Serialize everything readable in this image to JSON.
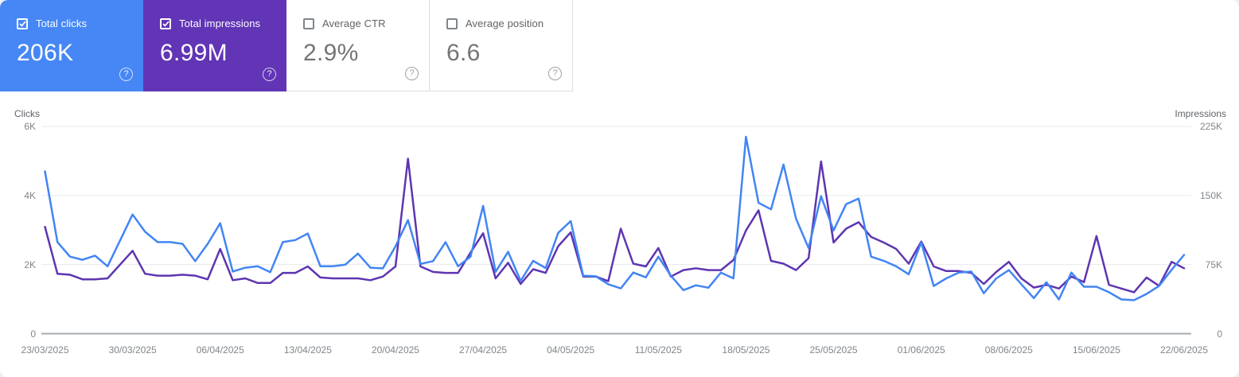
{
  "cards": [
    {
      "label": "Total clicks",
      "value": "206K",
      "checked": true,
      "bg": "#4687f5"
    },
    {
      "label": "Total impressions",
      "value": "6.99M",
      "checked": true,
      "bg": "#6135b5"
    },
    {
      "label": "Average CTR",
      "value": "2.9%",
      "checked": false,
      "bg": "#ffffff"
    },
    {
      "label": "Average position",
      "value": "6.6",
      "checked": false,
      "bg": "#ffffff"
    }
  ],
  "help_icon_glyph": "?",
  "chart_data": {
    "type": "line",
    "grid": "horizontal-only",
    "left_axis": {
      "title": "Clicks",
      "max": 6000,
      "ticks": [
        {
          "label": "0",
          "value": 0
        },
        {
          "label": "2K",
          "value": 2000
        },
        {
          "label": "4K",
          "value": 4000
        },
        {
          "label": "6K",
          "value": 6000
        }
      ]
    },
    "right_axis": {
      "title": "Impressions",
      "max": 225000,
      "ticks": [
        {
          "label": "0",
          "value": 0
        },
        {
          "label": "75K",
          "value": 75000
        },
        {
          "label": "150K",
          "value": 150000
        },
        {
          "label": "225K",
          "value": 225000
        }
      ]
    },
    "x_ticks": [
      "23/03/2025",
      "30/03/2025",
      "06/04/2025",
      "13/04/2025",
      "20/04/2025",
      "27/04/2025",
      "04/05/2025",
      "11/05/2025",
      "18/05/2025",
      "25/05/2025",
      "01/06/2025",
      "08/06/2025",
      "15/06/2025",
      "22/06/2025"
    ],
    "series": [
      {
        "name": "Total impressions",
        "axis": "right",
        "color": "#5e35b1",
        "values": [
          116000,
          65000,
          64000,
          59000,
          59000,
          60000,
          75000,
          90000,
          65000,
          63000,
          63000,
          64000,
          63000,
          59000,
          92000,
          58000,
          60000,
          55000,
          55000,
          66000,
          66000,
          73000,
          61000,
          60000,
          60000,
          60000,
          58000,
          62000,
          73000,
          190000,
          73000,
          67000,
          66000,
          66000,
          88000,
          109000,
          60000,
          77000,
          54000,
          70000,
          66000,
          95000,
          110000,
          62000,
          62000,
          57000,
          114000,
          76000,
          73000,
          93000,
          62000,
          69000,
          71000,
          69000,
          69000,
          80000,
          112000,
          134000,
          79000,
          76000,
          69000,
          82000,
          187000,
          99000,
          114000,
          121000,
          105000,
          99000,
          92000,
          76000,
          100000,
          73000,
          68000,
          68000,
          66000,
          54000,
          67000,
          78000,
          60000,
          50000,
          53000,
          49000,
          62000,
          56000,
          106000,
          53000,
          49000,
          45000,
          61000,
          52000,
          78000,
          71000
        ]
      },
      {
        "name": "Total clicks",
        "axis": "left",
        "color": "#4285f4",
        "values": [
          4700,
          2650,
          2230,
          2140,
          2260,
          1950,
          2700,
          3450,
          2950,
          2650,
          2650,
          2600,
          2100,
          2600,
          3200,
          1800,
          1910,
          1950,
          1780,
          2650,
          2710,
          2900,
          1950,
          1950,
          2000,
          2320,
          1910,
          1890,
          2530,
          3290,
          2020,
          2100,
          2650,
          1950,
          2230,
          3700,
          1790,
          2370,
          1530,
          2110,
          1900,
          2920,
          3260,
          1680,
          1660,
          1430,
          1310,
          1770,
          1630,
          2230,
          1680,
          1260,
          1400,
          1330,
          1770,
          1600,
          5700,
          3790,
          3600,
          4900,
          3330,
          2480,
          3980,
          2990,
          3750,
          3910,
          2230,
          2110,
          1950,
          1720,
          2640,
          1380,
          1600,
          1770,
          1800,
          1170,
          1600,
          1840,
          1430,
          1030,
          1490,
          990,
          1770,
          1360,
          1360,
          1200,
          990,
          970,
          1150,
          1380,
          1850,
          2280
        ]
      }
    ]
  }
}
